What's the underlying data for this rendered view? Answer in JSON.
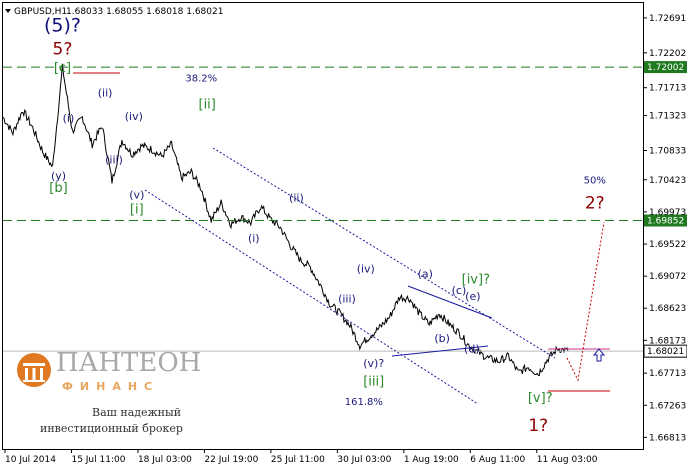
{
  "header": {
    "symbol": "GBPUSD,H1",
    "ohlc": "1.68033 1.68055 1.68018 1.68021"
  },
  "chart_data": {
    "type": "line",
    "symbol": "GBPUSD",
    "timeframe": "H1",
    "ylim": [
      1.6665,
      1.729
    ],
    "y_ticks": [
      1.72691,
      1.72202,
      1.71713,
      1.71323,
      1.70833,
      1.70423,
      1.69973,
      1.69522,
      1.69072,
      1.68623,
      1.68173,
      1.67713,
      1.67263,
      1.66813
    ],
    "x_ticks": [
      "10 Jul 2014",
      "15 Jul 11:00",
      "18 Jul 03:00",
      "22 Jul 19:00",
      "25 Jul 11:00",
      "30 Jul 03:00",
      "1 Aug 19:00",
      "6 Aug 11:00",
      "11 Aug 03:00"
    ],
    "price_bars": [
      0,
      10,
      20,
      30,
      40,
      50,
      60,
      70,
      80,
      90,
      100,
      110,
      120,
      130,
      140,
      150,
      160,
      170,
      180,
      190,
      200,
      210,
      220,
      230,
      240,
      250,
      260,
      270,
      280,
      290,
      300,
      310,
      320,
      330,
      340,
      350,
      360,
      370,
      380,
      390,
      400,
      410,
      420,
      430,
      440,
      450,
      460,
      470,
      480,
      490,
      500,
      510,
      520,
      530,
      540,
      550,
      560,
      570
    ],
    "price": [
      1.713,
      1.7108,
      1.714,
      1.7115,
      1.7082,
      1.706,
      1.72,
      1.711,
      1.713,
      1.7092,
      1.7118,
      1.704,
      1.7098,
      1.7078,
      1.709,
      1.7085,
      1.7075,
      1.7092,
      1.7045,
      1.7053,
      1.703,
      1.6985,
      1.701,
      1.698,
      1.699,
      1.6982,
      1.7005,
      1.6987,
      1.6975,
      1.695,
      1.693,
      1.692,
      1.6895,
      1.6868,
      1.6855,
      1.6838,
      1.681,
      1.6823,
      1.6835,
      1.685,
      1.6878,
      1.6876,
      1.6855,
      1.684,
      1.6855,
      1.684,
      1.6828,
      1.681,
      1.68,
      1.6792,
      1.6788,
      1.6795,
      1.6772,
      1.678,
      1.677,
      1.6792,
      1.6806,
      1.6802
    ],
    "levels": [
      {
        "value": 1.72002,
        "label": "1.72002",
        "style": "dashed",
        "color": "#1f7a1f"
      },
      {
        "value": 1.69852,
        "label": "1.69852",
        "style": "dashed",
        "color": "#1f7a1f"
      },
      {
        "value": 1.68021,
        "label": "1.68021",
        "style": "solid",
        "color": "#bbbbbb"
      }
    ],
    "waves": [
      {
        "text": "(5)?",
        "style": "big-blue",
        "bar": 60,
        "price": 1.725
      },
      {
        "text": "5?",
        "style": "red",
        "bar": 60,
        "price": 1.7218
      },
      {
        "text": "[c]",
        "style": "green",
        "bar": 60,
        "price": 1.7193
      },
      {
        "text": "(i)",
        "style": "blue",
        "bar": 66,
        "price": 1.7123
      },
      {
        "text": "(ii)",
        "style": "blue",
        "bar": 103,
        "price": 1.7159
      },
      {
        "text": "(iii)",
        "style": "blue",
        "bar": 112,
        "price": 1.7065
      },
      {
        "text": "(iv)",
        "style": "blue",
        "bar": 132,
        "price": 1.7126
      },
      {
        "text": "(y)",
        "style": "blue",
        "bar": 56,
        "price": 1.7043
      },
      {
        "text": "[b]",
        "style": "green",
        "bar": 56,
        "price": 1.7025
      },
      {
        "text": "(v)",
        "style": "blue",
        "bar": 135,
        "price": 1.7016
      },
      {
        "text": "[i]",
        "style": "green",
        "bar": 135,
        "price": 1.6995
      },
      {
        "text": "38.2%",
        "style": "pct",
        "bar": 200,
        "price": 1.718
      },
      {
        "text": "[ii]",
        "style": "green",
        "bar": 206,
        "price": 1.7142
      },
      {
        "text": "(i)",
        "style": "blue",
        "bar": 253,
        "price": 1.6955
      },
      {
        "text": "(ii)",
        "style": "blue",
        "bar": 296,
        "price": 1.7012
      },
      {
        "text": "(iii)",
        "style": "blue",
        "bar": 347,
        "price": 1.687
      },
      {
        "text": "(iv)",
        "style": "blue",
        "bar": 366,
        "price": 1.6912
      },
      {
        "text": "(v)?",
        "style": "blue",
        "bar": 374,
        "price": 1.678
      },
      {
        "text": "[iii]",
        "style": "green",
        "bar": 374,
        "price": 1.6754
      },
      {
        "text": "161.8%",
        "style": "pct",
        "bar": 364,
        "price": 1.6727
      },
      {
        "text": "(a)",
        "style": "blue",
        "bar": 426,
        "price": 1.6905
      },
      {
        "text": "[iv]?",
        "style": "green",
        "bar": 477,
        "price": 1.6897
      },
      {
        "text": "(b)",
        "style": "blue",
        "bar": 443,
        "price": 1.6815
      },
      {
        "text": "(c)",
        "style": "blue",
        "bar": 460,
        "price": 1.6882
      },
      {
        "text": "(e)",
        "style": "blue",
        "bar": 474,
        "price": 1.6874
      },
      {
        "text": "(d)",
        "style": "blue",
        "bar": 473,
        "price": 1.68
      },
      {
        "text": "50%",
        "style": "pct",
        "bar": 597,
        "price": 1.7037
      },
      {
        "text": "2?",
        "style": "red",
        "bar": 597,
        "price": 1.7002
      },
      {
        "text": "[v]?",
        "style": "green",
        "bar": 542,
        "price": 1.6731
      },
      {
        "text": "1?",
        "style": "red",
        "bar": 540,
        "price": 1.669
      }
    ]
  },
  "logo": {
    "brand": "ПАНТЕОН",
    "brand_sub": "ФИНАНС",
    "tagline_1": "Ваш надежный",
    "tagline_2": "инвестиционный брокер"
  },
  "colors": {
    "price": "#000000",
    "green_level": "#1f7a1f",
    "channel": "#1a1aa0",
    "target": "#c00000",
    "label_bg": "#1f7a1f"
  }
}
